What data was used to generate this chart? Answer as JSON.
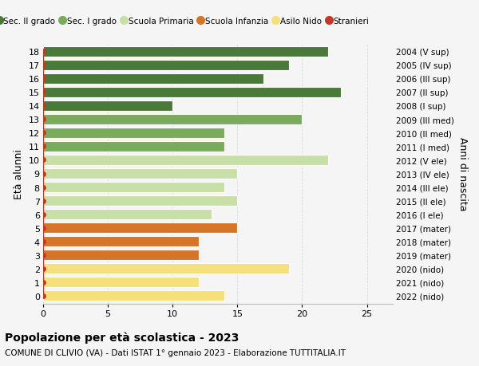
{
  "ages": [
    18,
    17,
    16,
    15,
    14,
    13,
    12,
    11,
    10,
    9,
    8,
    7,
    6,
    5,
    4,
    3,
    2,
    1,
    0
  ],
  "values": [
    22,
    19,
    17,
    23,
    10,
    20,
    14,
    14,
    22,
    15,
    14,
    15,
    13,
    15,
    12,
    12,
    19,
    12,
    14
  ],
  "right_labels": [
    "2004 (V sup)",
    "2005 (IV sup)",
    "2006 (III sup)",
    "2007 (II sup)",
    "2008 (I sup)",
    "2009 (III med)",
    "2010 (II med)",
    "2011 (I med)",
    "2012 (V ele)",
    "2013 (IV ele)",
    "2014 (III ele)",
    "2015 (II ele)",
    "2016 (I ele)",
    "2017 (mater)",
    "2018 (mater)",
    "2019 (mater)",
    "2020 (nido)",
    "2021 (nido)",
    "2022 (nido)"
  ],
  "bar_colors": [
    "#4a7a3a",
    "#4a7a3a",
    "#4a7a3a",
    "#4a7a3a",
    "#4a7a3a",
    "#7aaa5b",
    "#7aaa5b",
    "#7aaa5b",
    "#c8dfa8",
    "#c8dfa8",
    "#c8dfa8",
    "#c8dfa8",
    "#c8dfa8",
    "#d4752a",
    "#d4752a",
    "#d4752a",
    "#f5e07a",
    "#f5e07a",
    "#f5e07a"
  ],
  "legend_colors": [
    "#4a7a3a",
    "#7aaa5b",
    "#c8dfa8",
    "#d4752a",
    "#f5e07a"
  ],
  "legend_labels": [
    "Sec. II grado",
    "Sec. I grado",
    "Scuola Primaria",
    "Scuola Infanzia",
    "Asilo Nido",
    "Stranieri"
  ],
  "dot_color": "#c0392b",
  "dot_line_color": "#c0392b",
  "title": "Popolazione per età scolastica - 2023",
  "subtitle": "COMUNE DI CLIVIO (VA) - Dati ISTAT 1° gennaio 2023 - Elaborazione TUTTITALIA.IT",
  "ylabel": "Età alunni",
  "ylabel_right": "Anni di nascita",
  "xlim": [
    0,
    27
  ],
  "background_color": "#f5f5f5",
  "bar_edge_color": "#ffffff",
  "grid_color": "#dddddd",
  "xticks": [
    0,
    5,
    10,
    15,
    20,
    25
  ]
}
